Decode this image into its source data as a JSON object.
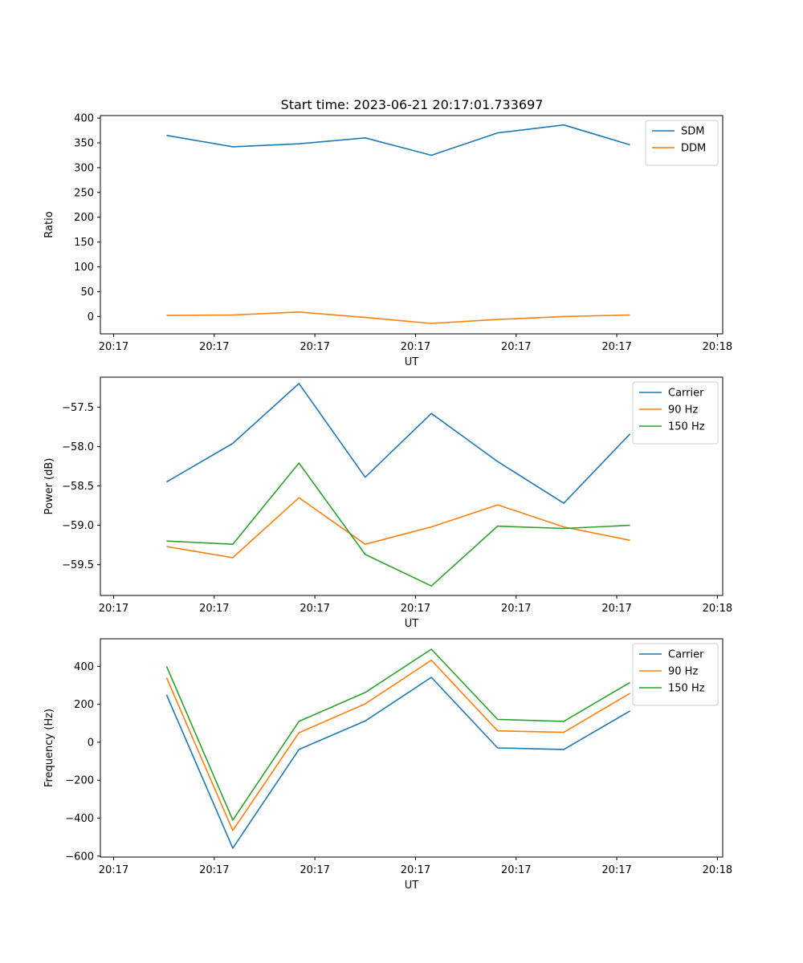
{
  "title": "Start time: 2023-06-21 20:17:01.733697",
  "colors": {
    "blue": "#1f77b4",
    "orange": "#ff7f0e",
    "green": "#2ca02c"
  },
  "chart_data": [
    {
      "type": "line",
      "xlabel": "UT",
      "ylabel": "Ratio",
      "x": [
        1,
        2,
        3,
        4,
        5,
        6,
        7,
        8
      ],
      "x_tick_positions": [
        0.2,
        1.72,
        3.24,
        4.76,
        6.28,
        7.8,
        9.32
      ],
      "x_tick_labels": [
        "20:17",
        "20:17",
        "20:17",
        "20:17",
        "20:17",
        "20:17",
        "20:18"
      ],
      "xlim": [
        0.0,
        9.4
      ],
      "ylim": [
        -35,
        405
      ],
      "y_ticks": [
        0,
        50,
        100,
        150,
        200,
        250,
        300,
        350,
        400
      ],
      "legend": "top-right",
      "series": [
        {
          "name": "SDM",
          "color": "#1f77b4",
          "values": [
            365,
            342,
            348,
            360,
            325,
            370,
            386,
            346
          ]
        },
        {
          "name": "DDM",
          "color": "#ff7f0e",
          "values": [
            2,
            3,
            9,
            -2,
            -14,
            -6,
            0,
            3
          ]
        }
      ]
    },
    {
      "type": "line",
      "xlabel": "UT",
      "ylabel": "Power (dB)",
      "x": [
        1,
        2,
        3,
        4,
        5,
        6,
        7,
        8
      ],
      "x_tick_positions": [
        0.2,
        1.72,
        3.24,
        4.76,
        6.28,
        7.8,
        9.32
      ],
      "x_tick_labels": [
        "20:17",
        "20:17",
        "20:17",
        "20:17",
        "20:17",
        "20:17",
        "20:18"
      ],
      "xlim": [
        0.0,
        9.4
      ],
      "ylim": [
        -59.89,
        -57.12
      ],
      "y_ticks": [
        -59.5,
        -59.0,
        -58.5,
        -58.0,
        -57.5
      ],
      "y_tick_labels": [
        "−59.5",
        "−59.0",
        "−58.5",
        "−58.0",
        "−57.5"
      ],
      "legend": "top-right",
      "series": [
        {
          "name": "Carrier",
          "color": "#1f77b4",
          "values": [
            -58.45,
            -57.96,
            -57.2,
            -58.39,
            -57.58,
            -58.19,
            -58.72,
            -57.84
          ]
        },
        {
          "name": "90 Hz",
          "color": "#ff7f0e",
          "values": [
            -59.27,
            -59.41,
            -58.65,
            -59.24,
            -59.02,
            -58.74,
            -59.02,
            -59.19
          ]
        },
        {
          "name": "150 Hz",
          "color": "#2ca02c",
          "values": [
            -59.2,
            -59.24,
            -58.21,
            -59.37,
            -59.77,
            -59.01,
            -59.04,
            -59.0
          ]
        }
      ]
    },
    {
      "type": "line",
      "xlabel": "UT",
      "ylabel": "Frequency (Hz)",
      "x": [
        1,
        2,
        3,
        4,
        5,
        6,
        7,
        8
      ],
      "x_tick_positions": [
        0.2,
        1.72,
        3.24,
        4.76,
        6.28,
        7.8,
        9.32
      ],
      "x_tick_labels": [
        "20:17",
        "20:17",
        "20:17",
        "20:17",
        "20:17",
        "20:17",
        "20:18"
      ],
      "xlim": [
        0.0,
        9.4
      ],
      "ylim": [
        -605,
        545
      ],
      "y_ticks": [
        -600,
        -400,
        -200,
        0,
        200,
        400
      ],
      "y_tick_labels": [
        "−600",
        "−400",
        "−200",
        "0",
        "200",
        "400"
      ],
      "legend": "top-right",
      "series": [
        {
          "name": "Carrier",
          "color": "#1f77b4",
          "values": [
            250,
            -558,
            -38,
            112,
            342,
            -30,
            -38,
            165
          ]
        },
        {
          "name": "90 Hz",
          "color": "#ff7f0e",
          "values": [
            340,
            -465,
            50,
            202,
            432,
            60,
            52,
            258
          ]
        },
        {
          "name": "150 Hz",
          "color": "#2ca02c",
          "values": [
            400,
            -410,
            110,
            262,
            490,
            120,
            110,
            315
          ]
        }
      ]
    }
  ]
}
